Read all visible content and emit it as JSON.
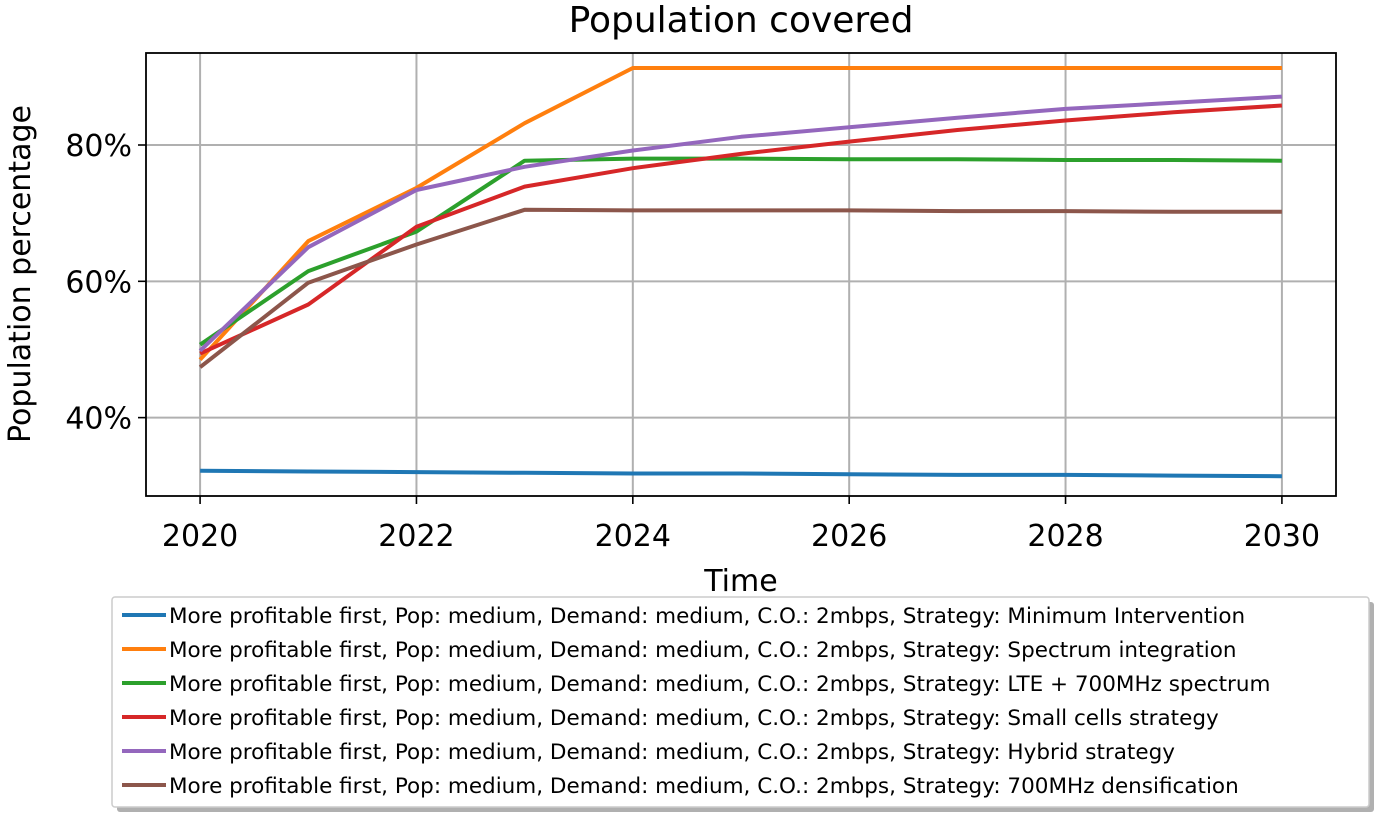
{
  "chart_data": {
    "type": "line",
    "title": "Population covered",
    "xlabel": "Time",
    "ylabel": "Population percentage",
    "xlim": [
      2019.5,
      2030.5
    ],
    "ylim": [
      28.5,
      93.5
    ],
    "x_ticks": [
      2020,
      2022,
      2024,
      2026,
      2028,
      2030
    ],
    "x_tick_labels": [
      "2020",
      "2022",
      "2024",
      "2026",
      "2028",
      "2030"
    ],
    "y_ticks": [
      40,
      60,
      80
    ],
    "y_tick_labels": [
      "40%",
      "60%",
      "80%"
    ],
    "grid": true,
    "legend_position": "below",
    "x": [
      2020,
      2021,
      2022,
      2023,
      2024,
      2025,
      2026,
      2027,
      2028,
      2029,
      2030
    ],
    "series": [
      {
        "name": "More profitable first, Pop: medium, Demand: medium, C.O.: 2mbps, Strategy: Minimum Intervention",
        "color": "#1f77b4",
        "values": [
          32.2,
          32.1,
          32.0,
          31.9,
          31.8,
          31.8,
          31.7,
          31.6,
          31.6,
          31.5,
          31.4
        ]
      },
      {
        "name": "More profitable first, Pop: medium, Demand: medium, C.O.: 2mbps, Strategy: Spectrum integration",
        "color": "#ff7f0e",
        "values": [
          48.5,
          65.9,
          73.7,
          83.2,
          91.3,
          91.3,
          91.3,
          91.3,
          91.3,
          91.3,
          91.3
        ]
      },
      {
        "name": "More profitable first, Pop: medium, Demand: medium, C.O.: 2mbps, Strategy: LTE + 700MHz spectrum",
        "color": "#2ca02c",
        "values": [
          50.7,
          61.5,
          67.3,
          77.7,
          78.0,
          78.0,
          77.9,
          77.9,
          77.8,
          77.8,
          77.7
        ]
      },
      {
        "name": "More profitable first, Pop: medium, Demand: medium, C.O.: 2mbps, Strategy: Small cells strategy",
        "color": "#d62728",
        "values": [
          49.4,
          56.6,
          68.0,
          73.9,
          76.6,
          78.7,
          80.5,
          82.2,
          83.6,
          84.8,
          85.8
        ]
      },
      {
        "name": "More profitable first, Pop: medium, Demand: medium, C.O.: 2mbps, Strategy: Hybrid strategy",
        "color": "#9467bd",
        "values": [
          49.8,
          65.0,
          73.4,
          76.8,
          79.2,
          81.2,
          82.6,
          84.0,
          85.3,
          86.2,
          87.1
        ]
      },
      {
        "name": "More profitable first, Pop: medium, Demand: medium, C.O.: 2mbps, Strategy: 700MHz densification",
        "color": "#8c564b",
        "values": [
          47.4,
          59.8,
          65.4,
          70.5,
          70.4,
          70.4,
          70.4,
          70.3,
          70.3,
          70.2,
          70.2
        ]
      }
    ]
  }
}
